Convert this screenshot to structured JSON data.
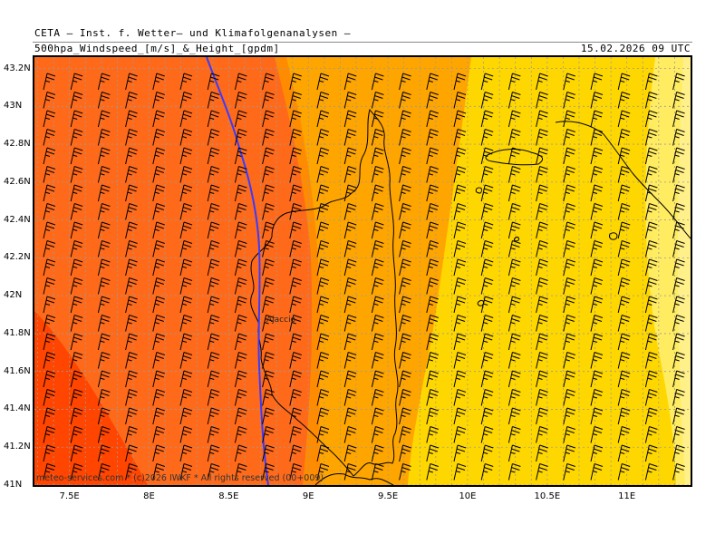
{
  "header": {
    "title": "CETA – Inst. f. Wetter– und Klimafolgenanalysen –",
    "subtitle": "500hpa_Windspeed_[m/s]_&_Height_[gpdm]",
    "datetime": "15.02.2026 09 UTC"
  },
  "map": {
    "lat_labels": [
      "43.2N",
      "43N",
      "42.8N",
      "42.6N",
      "42.4N",
      "42.2N",
      "42N",
      "41.8N",
      "41.6N",
      "41.4N",
      "41.2N",
      "41N"
    ],
    "lon_labels": [
      "7.5E",
      "8E",
      "8.5E",
      "9E",
      "9.5E",
      "10E",
      "10.5E",
      "11E"
    ],
    "lat_values": [
      43.2,
      43.0,
      42.8,
      42.6,
      42.4,
      42.2,
      42.0,
      41.8,
      41.6,
      41.4,
      41.2,
      41.0
    ],
    "lon_values": [
      7.5,
      8.0,
      8.5,
      9.0,
      9.5,
      10.0,
      10.5,
      11.0
    ],
    "lon_range": [
      7.28,
      11.4
    ],
    "lat_range": [
      41.0,
      43.26
    ],
    "city_label": "Ajaccio",
    "credit": "meteo-services.com * (c)2026 IWKF * All rights reserved (00+009)",
    "wind_fill_colors": [
      "#ff4500",
      "#ff6a1a",
      "#ff8c00",
      "#ffa500",
      "#ffc400",
      "#ffd700",
      "#ffec60"
    ],
    "height_contour_color": "#3a3aff",
    "coast_color": "#000000"
  }
}
